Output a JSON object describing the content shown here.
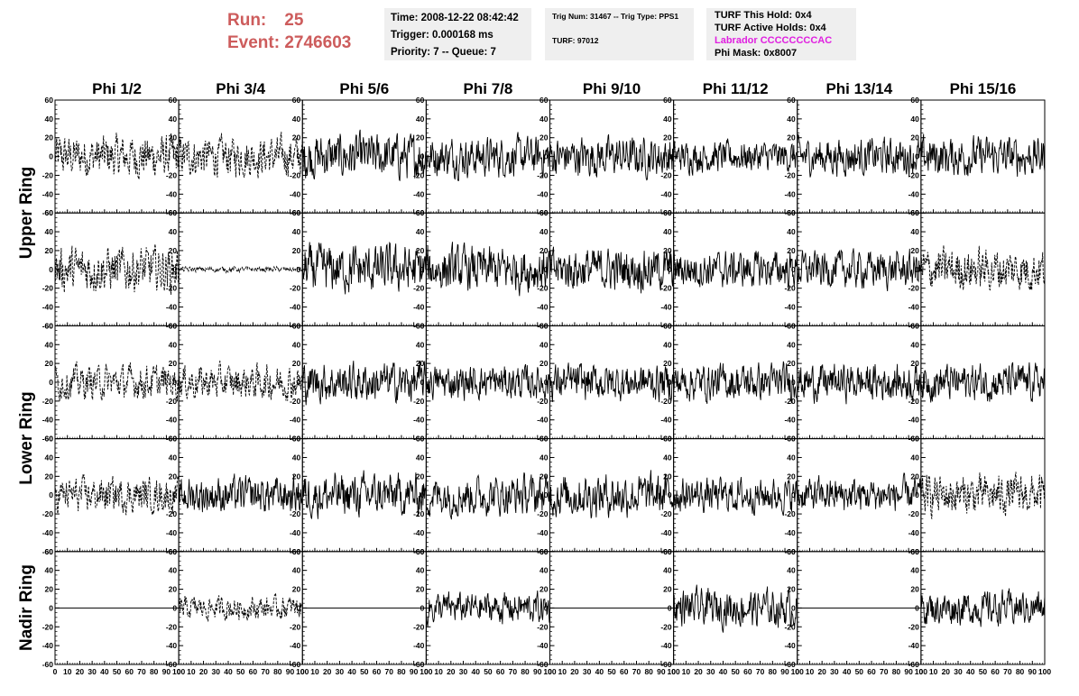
{
  "header": {
    "run_label": "Run:",
    "run_value": "25",
    "event_label": "Event:",
    "event_value": "2746603"
  },
  "info_panel_1": {
    "time": "Time: 2008-12-22 08:42:42",
    "trigger": "Trigger: 0.000168 ms",
    "priority": "Priority: 7 -- Queue: 7"
  },
  "info_panel_2": {
    "trig": "Trig Num: 31467 -- Trig Type: PPS1",
    "turf": "TURF: 97012"
  },
  "info_panel_3": {
    "this_hold": "TURF This Hold: 0x4",
    "active_holds": "TURF Active Holds: 0x4",
    "labrador": "Labrador CCCCCCCCAC",
    "phi_mask": "Phi Mask: 0x8007"
  },
  "colors": {
    "header": "#cd5c5c",
    "labrador": "#e020e0",
    "panel_bg": "#efefef",
    "trace": "#000000"
  },
  "chart_data": {
    "type": "line",
    "columns": [
      "Phi 1/2",
      "Phi 3/4",
      "Phi 5/6",
      "Phi 7/8",
      "Phi 9/10",
      "Phi 11/12",
      "Phi 13/14",
      "Phi 15/16"
    ],
    "ring_labels": [
      "Upper Ring",
      "Lower Ring",
      "Nadir Ring"
    ],
    "rows": 5,
    "xlim": [
      0,
      100
    ],
    "ylim": [
      -60,
      60
    ],
    "yticks": [
      60,
      40,
      20,
      0,
      -20,
      -40,
      -60
    ],
    "xticks": [
      0,
      10,
      20,
      30,
      40,
      50,
      60,
      70,
      80,
      90,
      100
    ],
    "traces": [
      [
        "dash",
        "dash",
        "solid",
        "solid",
        "solid",
        "solid",
        "solid",
        "solid"
      ],
      [
        "dash",
        "dash",
        "solid",
        "solid",
        "solid",
        "solid",
        "solid",
        "dash"
      ],
      [
        "dash",
        "dash",
        "solid",
        "solid",
        "solid",
        "solid",
        "solid",
        "solid"
      ],
      [
        "dash",
        "solid",
        "solid",
        "solid",
        "solid",
        "solid",
        "solid",
        "dash"
      ],
      [
        "flat",
        "dash",
        "flat",
        "solid",
        "flat",
        "solid",
        "flat",
        "solid"
      ]
    ],
    "amplitudes": [
      [
        15,
        14,
        16,
        14,
        14,
        11,
        13,
        14
      ],
      [
        16,
        2,
        17,
        16,
        15,
        13,
        13,
        15
      ],
      [
        12,
        12,
        14,
        12,
        13,
        13,
        13,
        13
      ],
      [
        12,
        13,
        15,
        14,
        15,
        12,
        12,
        14
      ],
      [
        0,
        8,
        0,
        11,
        0,
        13,
        0,
        12
      ]
    ]
  }
}
